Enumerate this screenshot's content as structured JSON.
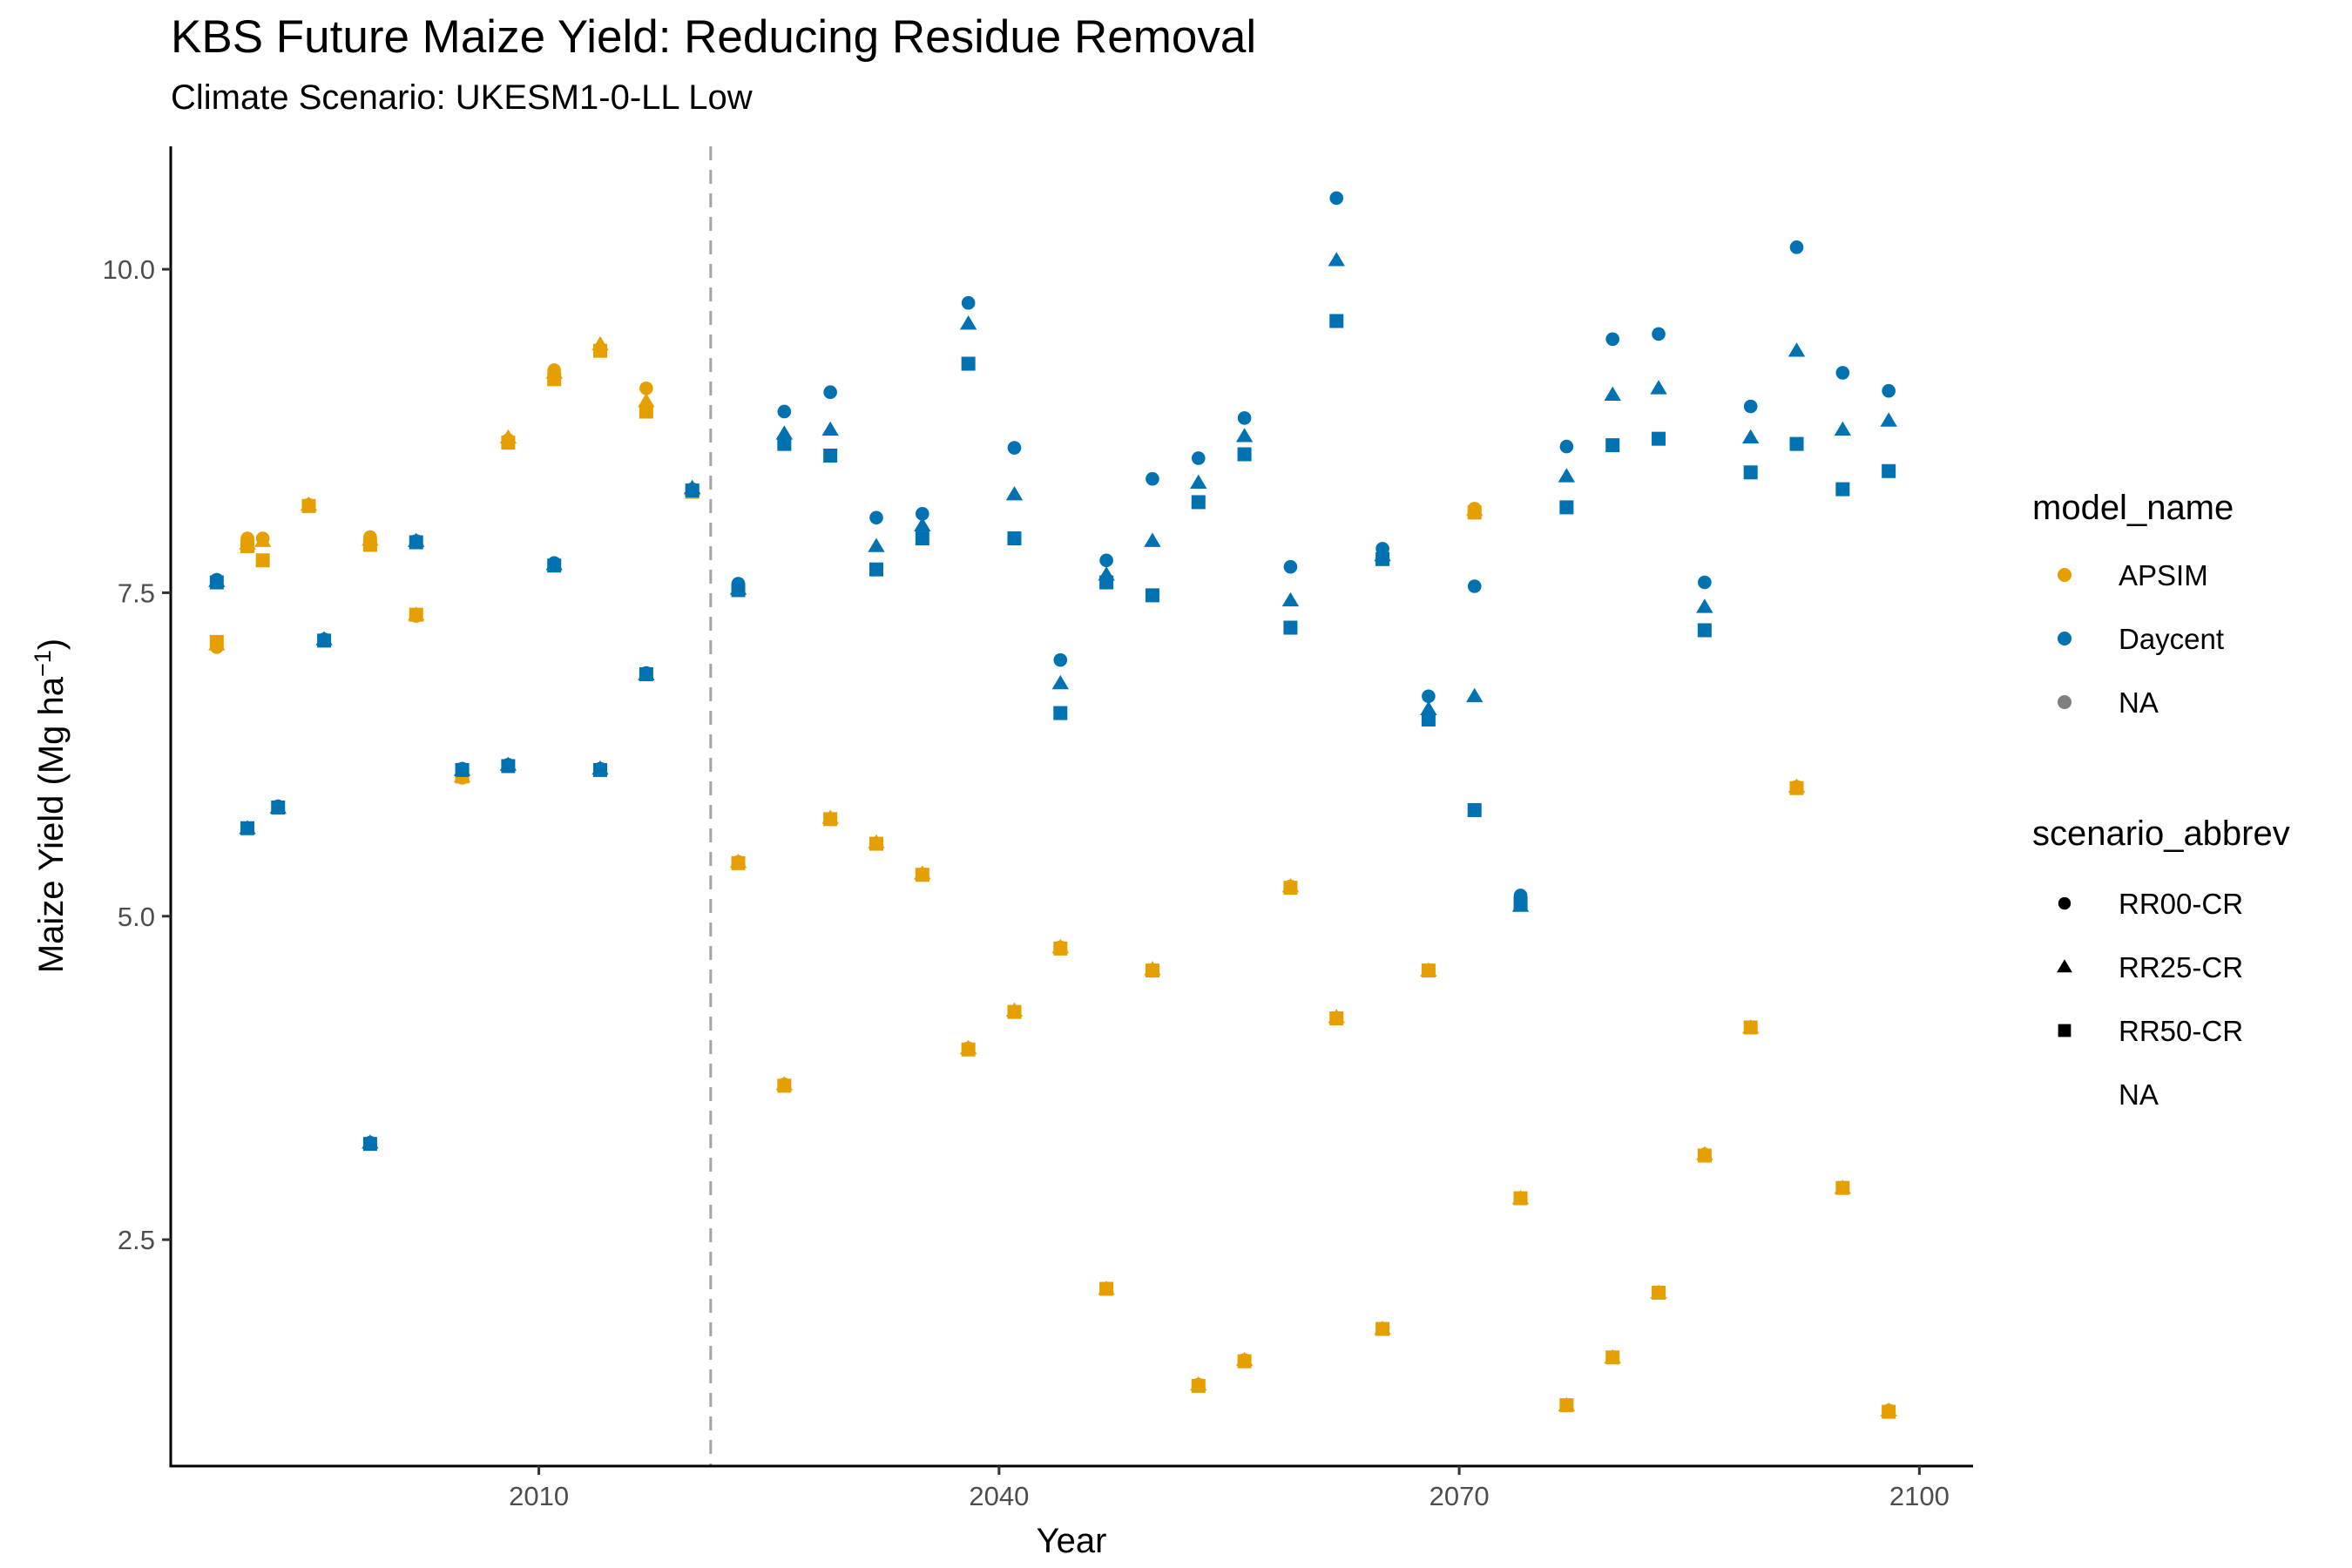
{
  "chart_data": {
    "type": "scatter",
    "title": "KBS Future Maize Yield: Reducing Residue Removal",
    "subtitle": "Climate Scenario: UKESM1-0-LL Low",
    "xlabel": "Year",
    "ylabel_main": "Maize Yield (Mg ha",
    "ylabel_sup": "−1",
    "ylabel_close": ")",
    "xlim": [
      1986,
      2103.5
    ],
    "ylim": [
      0.75,
      10.95
    ],
    "xticks": [
      2010,
      2040,
      2070,
      2100
    ],
    "xtick_labels": [
      "2010",
      "2040",
      "2070",
      "2100"
    ],
    "yticks": [
      2.5,
      5.0,
      7.5,
      10.0
    ],
    "ytick_labels": [
      "2.5",
      "5.0",
      "7.5",
      "10.0"
    ],
    "reference_line": {
      "x": 2021.2,
      "style": "dashed",
      "color": "#a6a6a6"
    },
    "grid": false,
    "legend_position": "right",
    "legend": {
      "model_title": "model_name",
      "model_items": [
        {
          "label": "APSIM",
          "color": "#E69F00"
        },
        {
          "label": "Daycent",
          "color": "#0072B2"
        },
        {
          "label": "NA",
          "color": "#808080"
        }
      ],
      "scenario_title": "scenario_abbrev",
      "scenario_items": [
        {
          "label": "RR00-CR",
          "shape": "circle"
        },
        {
          "label": "RR25-CR",
          "shape": "triangle"
        },
        {
          "label": "RR50-CR",
          "shape": "square"
        },
        {
          "label": "NA",
          "shape": "none"
        }
      ]
    },
    "series": [
      {
        "name": "APSIM",
        "color": "#E69F00",
        "x": [
          1989,
          1991,
          1992,
          1995,
          1999,
          2002,
          2005,
          2008,
          2011,
          2014,
          2017,
          2020,
          2023,
          2026,
          2029,
          2032,
          2035,
          2038,
          2041,
          2044,
          2047,
          2050,
          2053,
          2056,
          2059,
          2062,
          2065,
          2068,
          2071,
          2074,
          2077,
          2080,
          2083,
          2086,
          2089,
          2092,
          2095,
          2098
        ],
        "RR00-CR": [
          7.08,
          7.92,
          7.92,
          8.18,
          7.93,
          7.32,
          6.07,
          8.68,
          9.22,
          9.38,
          9.08,
          8.28,
          5.42,
          3.7,
          5.75,
          5.56,
          5.32,
          3.98,
          4.26,
          4.76,
          2.12,
          4.58,
          1.38,
          1.57,
          5.23,
          4.21,
          1.81,
          4.58,
          8.15,
          2.82,
          1.22,
          1.59,
          2.09,
          3.16,
          4.14,
          6.0,
          2.9,
          1.18
        ],
        "RR25-CR": [
          7.1,
          7.88,
          7.9,
          8.18,
          7.91,
          7.33,
          6.08,
          8.7,
          9.2,
          9.42,
          8.98,
          8.3,
          5.42,
          3.7,
          5.76,
          5.57,
          5.33,
          3.98,
          4.27,
          4.76,
          2.12,
          4.59,
          1.38,
          1.57,
          5.23,
          4.22,
          1.81,
          4.58,
          8.14,
          2.82,
          1.22,
          1.59,
          2.09,
          3.16,
          4.14,
          6.0,
          2.9,
          1.18
        ],
        "RR50-CR": [
          7.12,
          7.86,
          7.75,
          8.17,
          7.87,
          7.33,
          6.08,
          8.66,
          9.15,
          9.37,
          8.9,
          8.28,
          5.41,
          3.69,
          5.75,
          5.56,
          5.32,
          3.97,
          4.26,
          4.75,
          2.12,
          4.58,
          1.37,
          1.56,
          5.22,
          4.21,
          1.81,
          4.58,
          8.12,
          2.82,
          1.22,
          1.59,
          2.09,
          3.15,
          4.14,
          5.99,
          2.9,
          1.17
        ]
      },
      {
        "name": "Daycent",
        "color": "#0072B2",
        "x": [
          1989,
          1991,
          1993,
          1996,
          1999,
          2002,
          2005,
          2008,
          2011,
          2014,
          2017,
          2020,
          2023,
          2026,
          2029,
          2032,
          2035,
          2038,
          2041,
          2044,
          2047,
          2050,
          2053,
          2056,
          2059,
          2062,
          2065,
          2068,
          2071,
          2074,
          2077,
          2080,
          2083,
          2086,
          2089,
          2092,
          2095,
          2098
        ],
        "RR00-CR": [
          7.6,
          5.68,
          5.85,
          7.14,
          3.25,
          7.9,
          6.14,
          6.17,
          7.73,
          6.14,
          6.88,
          8.3,
          7.57,
          8.9,
          9.05,
          8.08,
          8.11,
          9.74,
          8.62,
          6.98,
          7.75,
          8.38,
          8.54,
          8.85,
          7.7,
          10.55,
          7.84,
          6.7,
          7.55,
          5.16,
          8.63,
          9.46,
          9.5,
          7.58,
          8.94,
          10.17,
          9.2,
          9.06
        ],
        "RR25-CR": [
          7.59,
          5.68,
          5.84,
          7.14,
          3.25,
          7.9,
          6.13,
          6.17,
          7.72,
          6.14,
          6.87,
          8.31,
          7.53,
          8.73,
          8.76,
          7.86,
          8.02,
          9.58,
          8.26,
          6.8,
          7.64,
          7.9,
          8.35,
          8.71,
          7.44,
          10.07,
          7.79,
          6.6,
          6.7,
          5.08,
          8.4,
          9.03,
          9.08,
          7.39,
          8.7,
          9.37,
          8.76,
          8.83
        ],
        "RR50-CR": [
          7.58,
          5.68,
          5.84,
          7.13,
          3.24,
          7.89,
          6.13,
          6.16,
          7.71,
          6.13,
          6.87,
          8.29,
          7.52,
          8.65,
          8.56,
          7.68,
          7.92,
          9.27,
          7.92,
          6.57,
          7.58,
          7.48,
          8.2,
          8.57,
          7.23,
          9.6,
          7.76,
          6.52,
          5.82,
          5.1,
          8.16,
          8.64,
          8.69,
          7.21,
          8.43,
          8.65,
          8.3,
          8.44
        ]
      }
    ]
  }
}
